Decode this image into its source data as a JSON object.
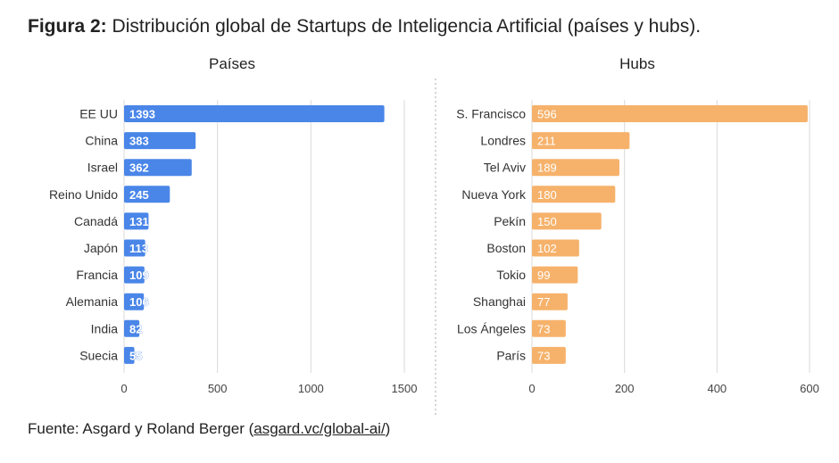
{
  "figure": {
    "label": "Figura 2:",
    "title": "Distribución global de Startups de Inteligencia Artificial (países y hubs).",
    "source_prefix": "Fuente: Asgard y Roland Berger (",
    "source_link": "asgard.vc/global-ai/",
    "source_suffix": ")"
  },
  "colors": {
    "countries_bar": "#4a86e8",
    "hubs_bar": "#f6b26b",
    "grid": "#d9d9d9"
  },
  "chart_data": [
    {
      "type": "bar",
      "orientation": "horizontal",
      "title": "Países",
      "categories": [
        "EE UU",
        "China",
        "Israel",
        "Reino Unido",
        "Canadá",
        "Japón",
        "Francia",
        "Alemania",
        "India",
        "Suecia"
      ],
      "values": [
        1393,
        383,
        362,
        245,
        131,
        113,
        109,
        106,
        82,
        55
      ],
      "xlim": [
        0,
        1500
      ],
      "xticks": [
        0,
        500,
        1000,
        1500
      ],
      "xlabel": "",
      "ylabel": "",
      "grid": true
    },
    {
      "type": "bar",
      "orientation": "horizontal",
      "title": "Hubs",
      "categories": [
        "S. Francisco",
        "Londres",
        "Tel Aviv",
        "Nueva York",
        "Pekín",
        "Boston",
        "Tokio",
        "Shanghai",
        "Los Ángeles",
        "París"
      ],
      "values": [
        596,
        211,
        189,
        180,
        150,
        102,
        99,
        77,
        73,
        73
      ],
      "xlim": [
        0,
        600
      ],
      "xticks": [
        0,
        200,
        400,
        600
      ],
      "xlabel": "",
      "ylabel": "",
      "grid": true
    }
  ]
}
